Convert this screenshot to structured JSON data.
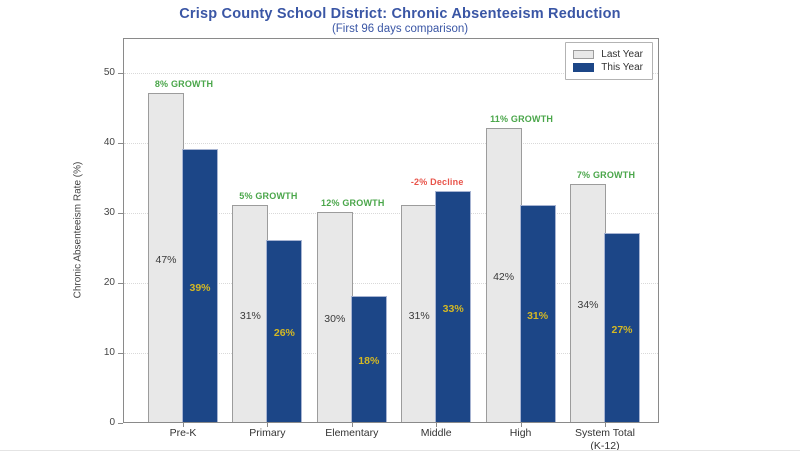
{
  "page": {
    "background": "#ffffff",
    "bottom_divider_color": "#e4e4e4"
  },
  "header": {
    "title": "Crisp County School District: Chronic Absenteeism Reduction",
    "subtitle": "(First 96 days comparison)",
    "title_color": "#3a56a5"
  },
  "chart_data": {
    "type": "bar",
    "title": "Crisp County School District: Chronic Absenteeism Reduction",
    "subtitle": "(First 96 days comparison)",
    "ylabel": "Chronic Absenteeism Rate (%)",
    "xlabel": "",
    "ylim": [
      0,
      55
    ],
    "yticks": [
      0,
      10,
      20,
      30,
      40,
      50
    ],
    "grid": "horizontal-dotted",
    "legend_position": "top-right-inside",
    "categories": [
      {
        "label": "Pre-K",
        "label2": ""
      },
      {
        "label": "Primary",
        "label2": ""
      },
      {
        "label": "Elementary",
        "label2": ""
      },
      {
        "label": "Middle",
        "label2": ""
      },
      {
        "label": "High",
        "label2": ""
      },
      {
        "label": "System Total",
        "label2": "(K-12)"
      }
    ],
    "series": [
      {
        "name": "Last Year",
        "color": "#e8e8e8",
        "edge_color": "#9c9c9c",
        "label_color": "#3a3a3a",
        "values": [
          47,
          31,
          30,
          31,
          42,
          34
        ]
      },
      {
        "name": "This Year",
        "color": "#1c4687",
        "edge_color": "#a7b4d2",
        "label_color": "#d4b824",
        "values": [
          39,
          26,
          18,
          33,
          31,
          27
        ]
      }
    ],
    "value_label_suffix": "%",
    "annotations": [
      {
        "text": "8% GROWTH",
        "color": "#4aa64a"
      },
      {
        "text": "5% GROWTH",
        "color": "#4aa64a"
      },
      {
        "text": "12% GROWTH",
        "color": "#4aa64a"
      },
      {
        "text": "-2% Decline",
        "color": "#e8544a"
      },
      {
        "text": "11% GROWTH",
        "color": "#4aa64a"
      },
      {
        "text": "7% GROWTH",
        "color": "#4aa64a"
      }
    ]
  }
}
